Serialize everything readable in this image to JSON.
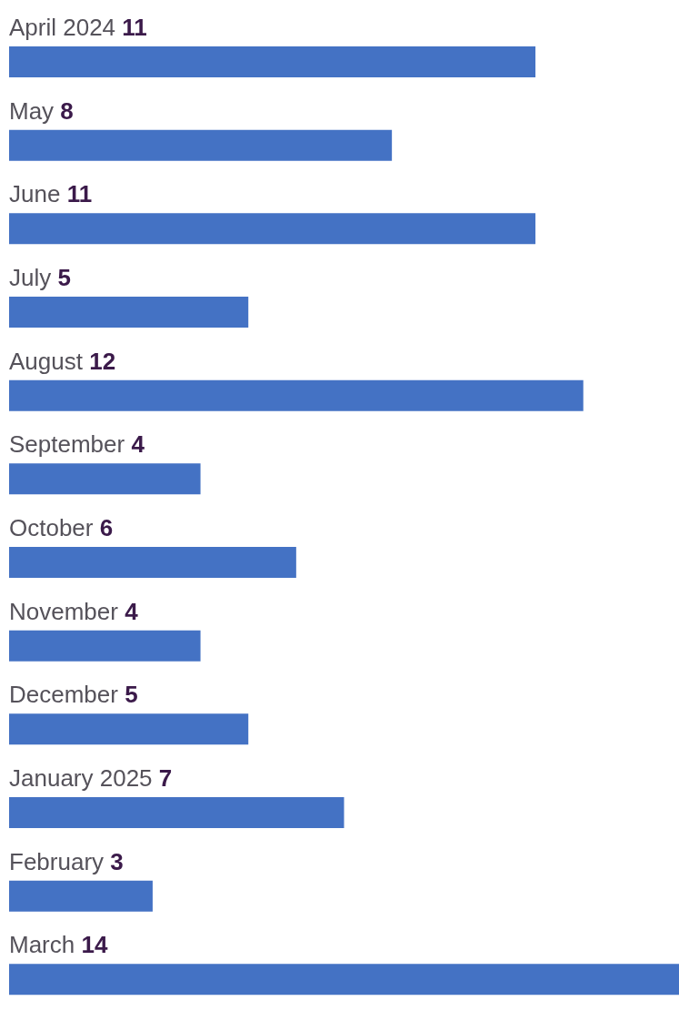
{
  "chart_data": {
    "type": "bar",
    "orientation": "horizontal",
    "categories": [
      "April 2024",
      "May",
      "June",
      "July",
      "August",
      "September",
      "October",
      "November",
      "December",
      "January 2025",
      "February",
      "March"
    ],
    "values": [
      11,
      8,
      11,
      5,
      12,
      4,
      6,
      4,
      5,
      7,
      3,
      14
    ],
    "color": "#4472c4",
    "data_labels": true
  }
}
